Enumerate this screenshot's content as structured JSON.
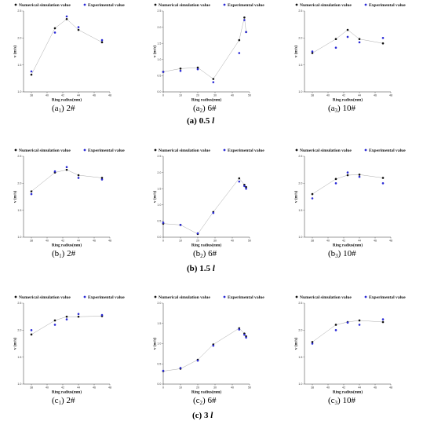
{
  "figure": {
    "legend": [
      "Numerical simulation value",
      "Experimental value"
    ],
    "xlabel": "Ring radius(mm)",
    "ylabel": "v (m/s)",
    "rows": [
      {
        "prefix": "(a) 0.5 ",
        "var": "l"
      },
      {
        "prefix": "(b) 1.5 ",
        "var": "l"
      },
      {
        "prefix": "(c) 3 ",
        "var": "l"
      }
    ],
    "panel_captions": [
      {
        "letter": "(a",
        "sub": "1",
        "name": ") 2#"
      },
      {
        "letter": "(a",
        "sub": "2",
        "name": ") 6#"
      },
      {
        "letter": "(a",
        "sub": "3",
        "name": ") 10#"
      },
      {
        "letter": "(b",
        "sub": "1",
        "name": ") 2#"
      },
      {
        "letter": "(b",
        "sub": "2",
        "name": ") 6#"
      },
      {
        "letter": "(b",
        "sub": "3",
        "name": ") 10#"
      },
      {
        "letter": "(c",
        "sub": "1",
        "name": ") 2#"
      },
      {
        "letter": "(c",
        "sub": "2",
        "name": ") 6#"
      },
      {
        "letter": "(c",
        "sub": "3",
        "name": ") 10#"
      }
    ],
    "colors": {
      "simulation": "#111111",
      "experimental": "#2a2ad6",
      "line": "#aaaaaa"
    }
  },
  "chart_data": [
    {
      "type": "scatter",
      "xlabel": "Ring radius(mm)",
      "ylabel": "v (m/s)",
      "xlim": [
        37,
        48
      ],
      "ylim": [
        1.0,
        2.5
      ],
      "xticks": [
        38,
        40,
        42,
        44,
        46,
        48
      ],
      "yticks": [
        1.0,
        1.5,
        2.0,
        2.5
      ],
      "series": [
        {
          "name": "Numerical simulation value",
          "x": [
            38,
            41,
            42.5,
            44,
            47
          ],
          "y": [
            1.32,
            2.18,
            2.35,
            2.15,
            1.92
          ]
        },
        {
          "name": "Experimental value",
          "x": [
            38,
            41,
            42.5,
            44,
            47
          ],
          "y": [
            1.38,
            2.1,
            2.4,
            2.2,
            1.96
          ]
        }
      ]
    },
    {
      "type": "scatter",
      "xlabel": "Ring radius(mm)",
      "ylabel": "v (m/s)",
      "xlim": [
        0,
        50
      ],
      "ylim": [
        0,
        2.5
      ],
      "xticks": [
        0,
        10,
        20,
        30,
        40,
        50
      ],
      "yticks": [
        0,
        0.5,
        1.0,
        1.5,
        2.0,
        2.5
      ],
      "series": [
        {
          "name": "Numerical simulation value",
          "x": [
            0,
            10,
            20,
            29,
            44,
            47,
            48
          ],
          "y": [
            0.62,
            0.72,
            0.75,
            0.4,
            1.6,
            2.3,
            1.85
          ]
        },
        {
          "name": "Experimental value",
          "x": [
            0,
            10,
            20,
            29,
            44,
            47,
            48
          ],
          "y": [
            0.62,
            0.65,
            0.7,
            0.3,
            1.2,
            2.22,
            1.85
          ]
        }
      ]
    },
    {
      "type": "scatter",
      "xlabel": "Ring radius(mm)",
      "ylabel": "v (m/s)",
      "xlim": [
        37,
        48
      ],
      "ylim": [
        1.0,
        2.5
      ],
      "xticks": [
        38,
        40,
        42,
        44,
        46,
        48
      ],
      "yticks": [
        1.0,
        1.5,
        2.0,
        2.5
      ],
      "series": [
        {
          "name": "Numerical simulation value",
          "x": [
            38,
            41,
            42.5,
            44,
            47
          ],
          "y": [
            1.72,
            1.98,
            2.15,
            1.98,
            1.9
          ]
        },
        {
          "name": "Experimental value",
          "x": [
            38,
            41,
            42.5,
            44,
            47
          ],
          "y": [
            1.75,
            1.82,
            2.02,
            1.92,
            2.0
          ]
        }
      ]
    },
    {
      "type": "scatter",
      "xlabel": "Ring radius(mm)",
      "ylabel": "v (m/s)",
      "xlim": [
        37,
        48
      ],
      "ylim": [
        1.0,
        2.5
      ],
      "xticks": [
        38,
        40,
        42,
        44,
        46,
        48
      ],
      "yticks": [
        1.0,
        1.5,
        2.0,
        2.5
      ],
      "series": [
        {
          "name": "Numerical simulation value",
          "x": [
            38,
            41,
            42.5,
            44,
            47
          ],
          "y": [
            1.85,
            2.2,
            2.25,
            2.15,
            2.1
          ]
        },
        {
          "name": "Experimental value",
          "x": [
            38,
            41,
            42.5,
            44,
            47
          ],
          "y": [
            1.8,
            2.22,
            2.3,
            2.1,
            2.07
          ]
        }
      ]
    },
    {
      "type": "scatter",
      "xlabel": "Ring radius(mm)",
      "ylabel": "v (m/s)",
      "xlim": [
        0,
        50
      ],
      "ylim": [
        0,
        2.5
      ],
      "xticks": [
        0,
        10,
        20,
        30,
        40,
        50
      ],
      "yticks": [
        0,
        0.5,
        1.0,
        1.5,
        2.0,
        2.5
      ],
      "series": [
        {
          "name": "Numerical simulation value",
          "x": [
            0,
            10,
            20,
            29,
            44,
            47,
            48
          ],
          "y": [
            0.42,
            0.38,
            0.1,
            0.78,
            1.82,
            1.62,
            1.55
          ]
        },
        {
          "name": "Experimental value",
          "x": [
            0,
            10,
            20,
            29,
            44,
            47,
            48
          ],
          "y": [
            0.45,
            0.38,
            0.12,
            0.75,
            1.72,
            1.58,
            1.5
          ]
        }
      ]
    },
    {
      "type": "scatter",
      "xlabel": "Ring radius(mm)",
      "ylabel": "v (m/s)",
      "xlim": [
        37,
        48
      ],
      "ylim": [
        1.0,
        2.5
      ],
      "xticks": [
        38,
        40,
        42,
        44,
        46,
        48
      ],
      "yticks": [
        1.0,
        1.5,
        2.0,
        2.5
      ],
      "series": [
        {
          "name": "Numerical simulation value",
          "x": [
            38,
            41,
            42.5,
            44,
            47
          ],
          "y": [
            1.8,
            2.08,
            2.15,
            2.16,
            2.1
          ]
        },
        {
          "name": "Experimental value",
          "x": [
            38,
            41,
            42.5,
            44,
            47
          ],
          "y": [
            1.72,
            2.0,
            2.2,
            2.12,
            2.0
          ]
        }
      ]
    },
    {
      "type": "scatter",
      "xlabel": "Ring radius(mm)",
      "ylabel": "v (m/s)",
      "xlim": [
        37,
        48
      ],
      "ylim": [
        1.0,
        2.5
      ],
      "xticks": [
        38,
        40,
        42,
        44,
        46,
        48
      ],
      "yticks": [
        1.0,
        1.5,
        2.0,
        2.5
      ],
      "series": [
        {
          "name": "Numerical simulation value",
          "x": [
            38,
            41,
            42.5,
            44,
            47
          ],
          "y": [
            1.92,
            2.18,
            2.25,
            2.25,
            2.26
          ]
        },
        {
          "name": "Experimental value",
          "x": [
            38,
            41,
            42.5,
            44,
            47
          ],
          "y": [
            2.0,
            2.1,
            2.2,
            2.3,
            2.28
          ]
        }
      ]
    },
    {
      "type": "scatter",
      "xlabel": "Ring radius(mm)",
      "ylabel": "v (m/s)",
      "xlim": [
        0,
        50
      ],
      "ylim": [
        0,
        2.0
      ],
      "xticks": [
        0,
        10,
        20,
        30,
        40,
        50
      ],
      "yticks": [
        0,
        0.5,
        1.0,
        1.5,
        2.0
      ],
      "series": [
        {
          "name": "Numerical simulation value",
          "x": [
            0,
            10,
            20,
            29,
            44,
            47,
            48
          ],
          "y": [
            0.32,
            0.38,
            0.6,
            0.98,
            1.38,
            1.25,
            1.18
          ]
        },
        {
          "name": "Experimental value",
          "x": [
            0,
            10,
            20,
            29,
            44,
            47,
            48
          ],
          "y": [
            0.33,
            0.4,
            0.58,
            0.95,
            1.35,
            1.22,
            1.15
          ]
        }
      ]
    },
    {
      "type": "scatter",
      "xlabel": "Ring radius(mm)",
      "ylabel": "v (m/s)",
      "xlim": [
        37,
        48
      ],
      "ylim": [
        1.0,
        2.5
      ],
      "xticks": [
        38,
        40,
        42,
        44,
        46,
        48
      ],
      "yticks": [
        1.0,
        1.5,
        2.0,
        2.5
      ],
      "series": [
        {
          "name": "Numerical simulation value",
          "x": [
            38,
            41,
            42.5,
            44,
            47
          ],
          "y": [
            1.78,
            2.1,
            2.15,
            2.18,
            2.15
          ]
        },
        {
          "name": "Experimental value",
          "x": [
            38,
            41,
            42.5,
            44,
            47
          ],
          "y": [
            1.75,
            2.0,
            2.14,
            2.1,
            2.2
          ]
        }
      ]
    }
  ]
}
